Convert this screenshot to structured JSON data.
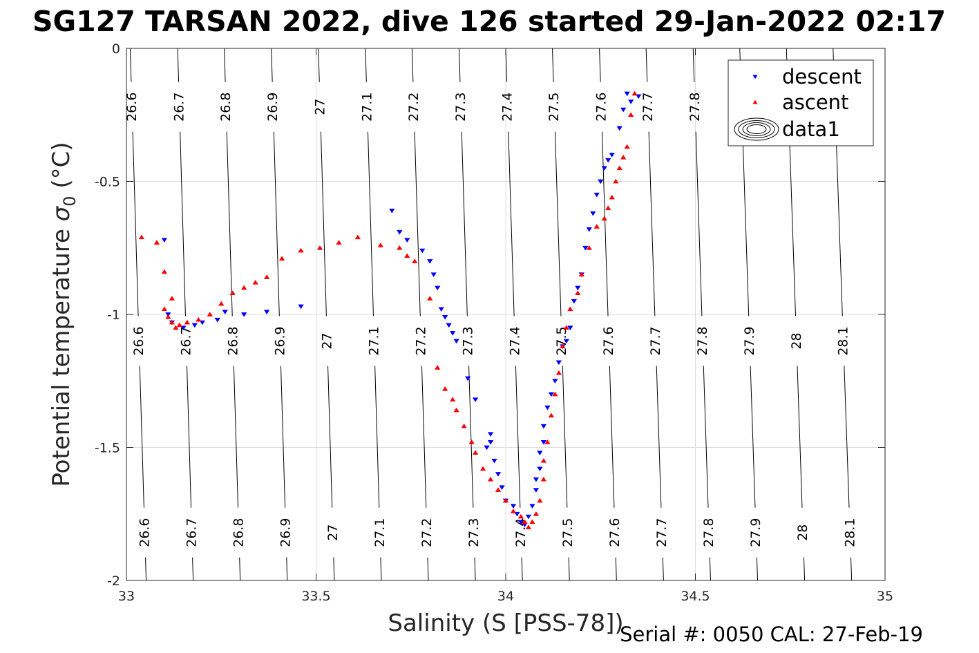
{
  "chart_data": {
    "type": "scatter",
    "title": "SG127 TARSAN 2022, dive 126 started 29-Jan-2022 02:17",
    "xlabel": "Salinity (S [PSS-78])",
    "ylabel": "Potential temperature",
    "ylabel_symbol": "σ",
    "ylabel_subscript": "0",
    "ylabel_unit": "(°C)",
    "footer": "Serial #: 0050  CAL: 27-Feb-19",
    "xlim": [
      33,
      35
    ],
    "ylim": [
      -2,
      0
    ],
    "xticks": [
      33,
      33.5,
      34,
      34.5,
      35
    ],
    "yticks": [
      -2,
      -1.5,
      -1,
      -0.5,
      0
    ],
    "xtick_labels": [
      "33",
      "33.5",
      "34",
      "34.5",
      "35"
    ],
    "ytick_labels": [
      "-2",
      "-1.5",
      "-1",
      "-0.5",
      "0"
    ],
    "grid": true,
    "legend_position": "top-right",
    "legend": [
      "descent",
      "ascent",
      "data1"
    ],
    "density_contours": {
      "levels": [
        "26.6",
        "26.7",
        "26.8",
        "26.9",
        "27",
        "27.1",
        "27.2",
        "27.3",
        "27.4",
        "27.5",
        "27.6",
        "27.7",
        "27.8",
        "27.9",
        "28",
        "28.1"
      ],
      "salinity_at_theta_minus2": [
        33.052,
        33.176,
        33.3,
        33.424,
        33.548,
        33.672,
        33.796,
        33.92,
        34.044,
        34.168,
        34.292,
        34.416,
        34.54,
        34.664,
        34.788,
        34.912
      ],
      "salinity_at_theta_0": [
        33.01,
        33.135,
        33.258,
        33.382,
        33.506,
        33.63,
        33.753,
        33.877,
        34.0,
        34.123,
        34.247,
        34.37,
        34.494,
        34.617,
        34.74,
        34.863
      ],
      "label_rows_theta": [
        -0.22,
        -1.1,
        -1.82
      ]
    },
    "series": [
      {
        "name": "descent",
        "color": "#0000ff",
        "marker": "triangle-down",
        "x": [
          34.32,
          34.33,
          34.35,
          34.31,
          34.3,
          34.28,
          34.27,
          34.26,
          34.25,
          34.24,
          34.23,
          34.22,
          34.21,
          34.2,
          34.19,
          34.18,
          34.17,
          34.16,
          34.15,
          34.14,
          34.13,
          34.12,
          34.11,
          34.1,
          34.1,
          34.09,
          34.09,
          34.08,
          34.08,
          34.07,
          34.06,
          34.05,
          34.04,
          34.03,
          34.02,
          34.0,
          33.99,
          33.98,
          33.97,
          33.96,
          33.96,
          33.95,
          33.92,
          33.9,
          33.87,
          33.86,
          33.85,
          33.84,
          33.83,
          33.82,
          33.81,
          33.8,
          33.78,
          33.74,
          33.72,
          33.7,
          33.46,
          33.37,
          33.31,
          33.26,
          33.24,
          33.2,
          33.18,
          33.15,
          33.12,
          33.11,
          33.1
        ],
        "y": [
          -0.17,
          -0.2,
          -0.18,
          -0.23,
          -0.3,
          -0.4,
          -0.42,
          -0.45,
          -0.5,
          -0.55,
          -0.62,
          -0.68,
          -0.75,
          -0.85,
          -0.9,
          -0.95,
          -1.05,
          -1.1,
          -1.12,
          -1.18,
          -1.25,
          -1.3,
          -1.35,
          -1.42,
          -1.48,
          -1.52,
          -1.58,
          -1.62,
          -1.66,
          -1.72,
          -1.76,
          -1.79,
          -1.78,
          -1.75,
          -1.72,
          -1.7,
          -1.65,
          -1.6,
          -1.55,
          -1.48,
          -1.45,
          -1.5,
          -1.32,
          -1.24,
          -1.1,
          -1.07,
          -1.04,
          -1.01,
          -0.98,
          -0.9,
          -0.85,
          -0.8,
          -0.76,
          -0.72,
          -0.69,
          -0.61,
          -0.97,
          -0.99,
          -1.0,
          -0.99,
          -1.02,
          -1.03,
          -1.04,
          -1.05,
          -1.03,
          -1.0,
          -0.72
        ]
      },
      {
        "name": "ascent",
        "color": "#ff0000",
        "marker": "triangle-up",
        "x": [
          33.04,
          33.08,
          33.1,
          33.12,
          33.1,
          33.11,
          33.12,
          33.13,
          33.14,
          33.16,
          33.19,
          33.22,
          33.25,
          33.28,
          33.31,
          33.34,
          33.37,
          33.41,
          33.46,
          33.51,
          33.56,
          33.61,
          33.67,
          33.72,
          33.74,
          33.76,
          33.8,
          33.82,
          33.84,
          33.86,
          33.87,
          33.89,
          33.91,
          33.92,
          33.94,
          33.96,
          33.98,
          34.0,
          34.02,
          34.04,
          34.05,
          34.06,
          34.07,
          34.08,
          34.09,
          34.1,
          34.1,
          34.11,
          34.12,
          34.13,
          34.14,
          34.15,
          34.16,
          34.17,
          34.19,
          34.2,
          34.22,
          34.24,
          34.26,
          34.27,
          34.28,
          34.29,
          34.3,
          34.31,
          34.32,
          34.33,
          34.34
        ],
        "y": [
          -0.71,
          -0.73,
          -0.84,
          -0.94,
          -0.98,
          -1.01,
          -1.03,
          -1.05,
          -1.04,
          -1.03,
          -1.02,
          -1.0,
          -0.96,
          -0.92,
          -0.9,
          -0.88,
          -0.86,
          -0.79,
          -0.76,
          -0.75,
          -0.73,
          -0.71,
          -0.74,
          -0.75,
          -0.78,
          -0.8,
          -0.94,
          -1.2,
          -1.28,
          -1.32,
          -1.36,
          -1.42,
          -1.48,
          -1.52,
          -1.58,
          -1.62,
          -1.66,
          -1.7,
          -1.74,
          -1.76,
          -1.78,
          -1.8,
          -1.78,
          -1.75,
          -1.7,
          -1.62,
          -1.55,
          -1.48,
          -1.38,
          -1.3,
          -1.22,
          -1.12,
          -1.05,
          -0.98,
          -0.92,
          -0.85,
          -0.75,
          -0.67,
          -0.64,
          -0.6,
          -0.56,
          -0.5,
          -0.45,
          -0.41,
          -0.37,
          -0.25,
          -0.17
        ]
      }
    ]
  }
}
